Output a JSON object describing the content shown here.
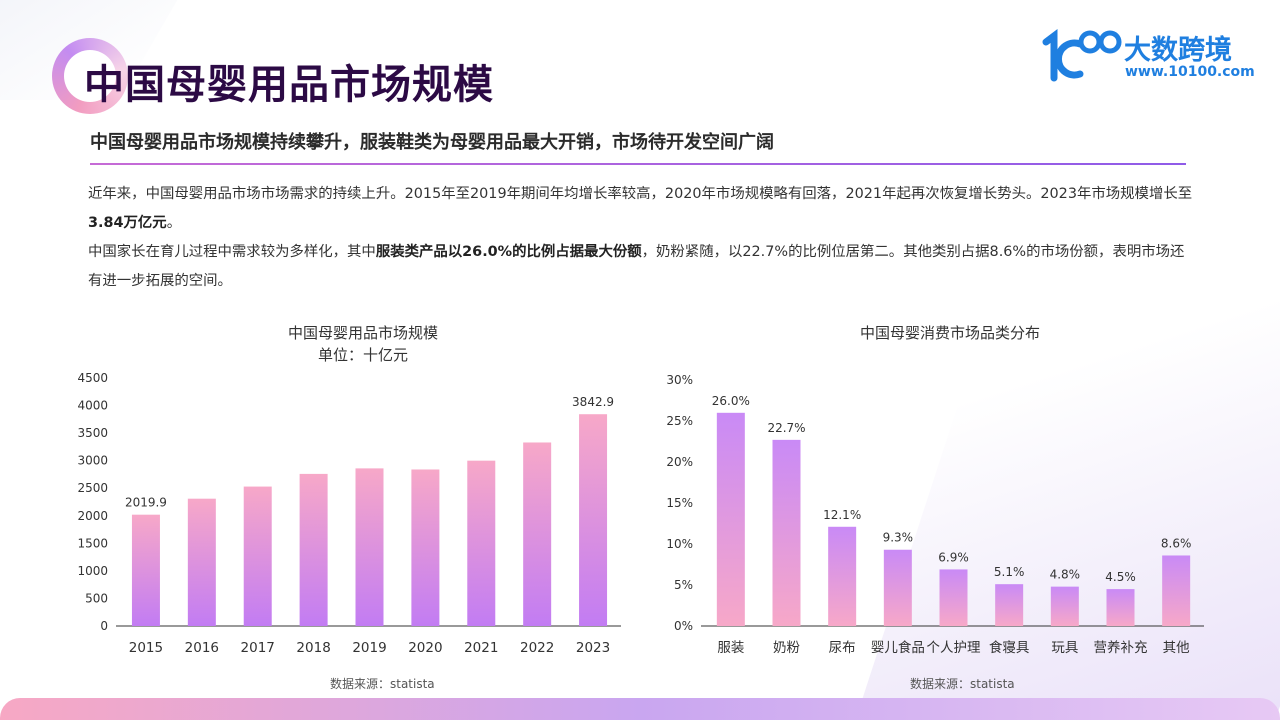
{
  "page": {
    "title": "中国母婴用品市场规模",
    "subtitle": "中国母婴用品市场规模持续攀升，服装鞋类为母婴用品最大开销，市场待开发空间广阔"
  },
  "logo": {
    "name": "大数跨境",
    "url": "www.10100.com",
    "mark": "100"
  },
  "body": {
    "p1_a": "近年来，中国母婴用品市场市场需求的持续上升。2015年至2019年期间年均增长率较高，2020年市场规模略有回落，2021年起再次恢复增长势头。2023年市场规模增长至",
    "p1_b": "3.84万亿元",
    "p1_c": "。",
    "p2_a": "中国家长在育儿过程中需求较为多样化，其中",
    "p2_b": "服装类产品以26.0%的比例占据最大份额",
    "p2_c": "，奶粉紧随，以22.7%的比例位居第二。其他类别占据8.6%的市场份额，表明市场还有进一步拓展的空间。"
  },
  "chart_data": [
    {
      "type": "bar",
      "title": "中国母婴用品市场规模",
      "subtitle": "单位：十亿元",
      "categories": [
        "2015",
        "2016",
        "2017",
        "2018",
        "2019",
        "2020",
        "2021",
        "2022",
        "2023"
      ],
      "values": [
        2019.9,
        2310,
        2530,
        2760,
        2860,
        2840,
        3000,
        3330,
        3842.9
      ],
      "data_labels": {
        "0": "2019.9",
        "8": "3842.9"
      },
      "y_ticks": [
        "0",
        "500",
        "1000",
        "1500",
        "2000",
        "2500",
        "3000",
        "3500",
        "4000",
        "4500"
      ],
      "ylim": [
        0,
        4500
      ],
      "source": "数据来源：statista",
      "colors": {
        "top": "#f7a8c8",
        "bottom": "#c27cf3"
      }
    },
    {
      "type": "bar",
      "title": "中国母婴消费市场品类分布",
      "categories": [
        "服装",
        "奶粉",
        "尿布",
        "婴儿食品",
        "个人护理",
        "食寝具",
        "玩具",
        "营养补充",
        "其他"
      ],
      "values": [
        26.0,
        22.7,
        12.1,
        9.3,
        6.9,
        5.1,
        4.8,
        4.5,
        8.6
      ],
      "data_labels": [
        "26.0%",
        "22.7%",
        "12.1%",
        "9.3%",
        "6.9%",
        "5.1%",
        "4.8%",
        "4.5%",
        "8.6%"
      ],
      "y_ticks": [
        "0%",
        "5%",
        "10%",
        "15%",
        "20%",
        "25%",
        "30%"
      ],
      "ylim": [
        0,
        30
      ],
      "source": "数据来源：statista",
      "colors": {
        "top": "#c98af6",
        "bottom": "#f7a8c8"
      }
    }
  ]
}
